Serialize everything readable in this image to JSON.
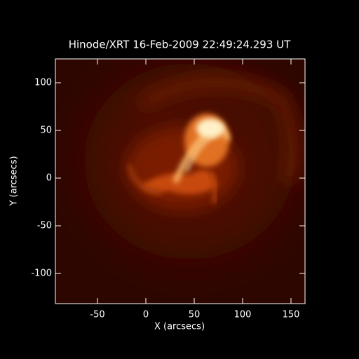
{
  "chart_data": {
    "type": "image",
    "title": "Hinode/XRT 16-Feb-2009 22:49:24.293 UT",
    "x_label": "X (arcsecs)",
    "y_label": "Y (arcsecs)",
    "xlim": [
      -93.5,
      164.5
    ],
    "ylim": [
      -131.6,
      125
    ],
    "xticks": [
      -50,
      0,
      50,
      100,
      150
    ],
    "yticks": [
      -100,
      -50,
      0,
      50,
      100
    ]
  }
}
